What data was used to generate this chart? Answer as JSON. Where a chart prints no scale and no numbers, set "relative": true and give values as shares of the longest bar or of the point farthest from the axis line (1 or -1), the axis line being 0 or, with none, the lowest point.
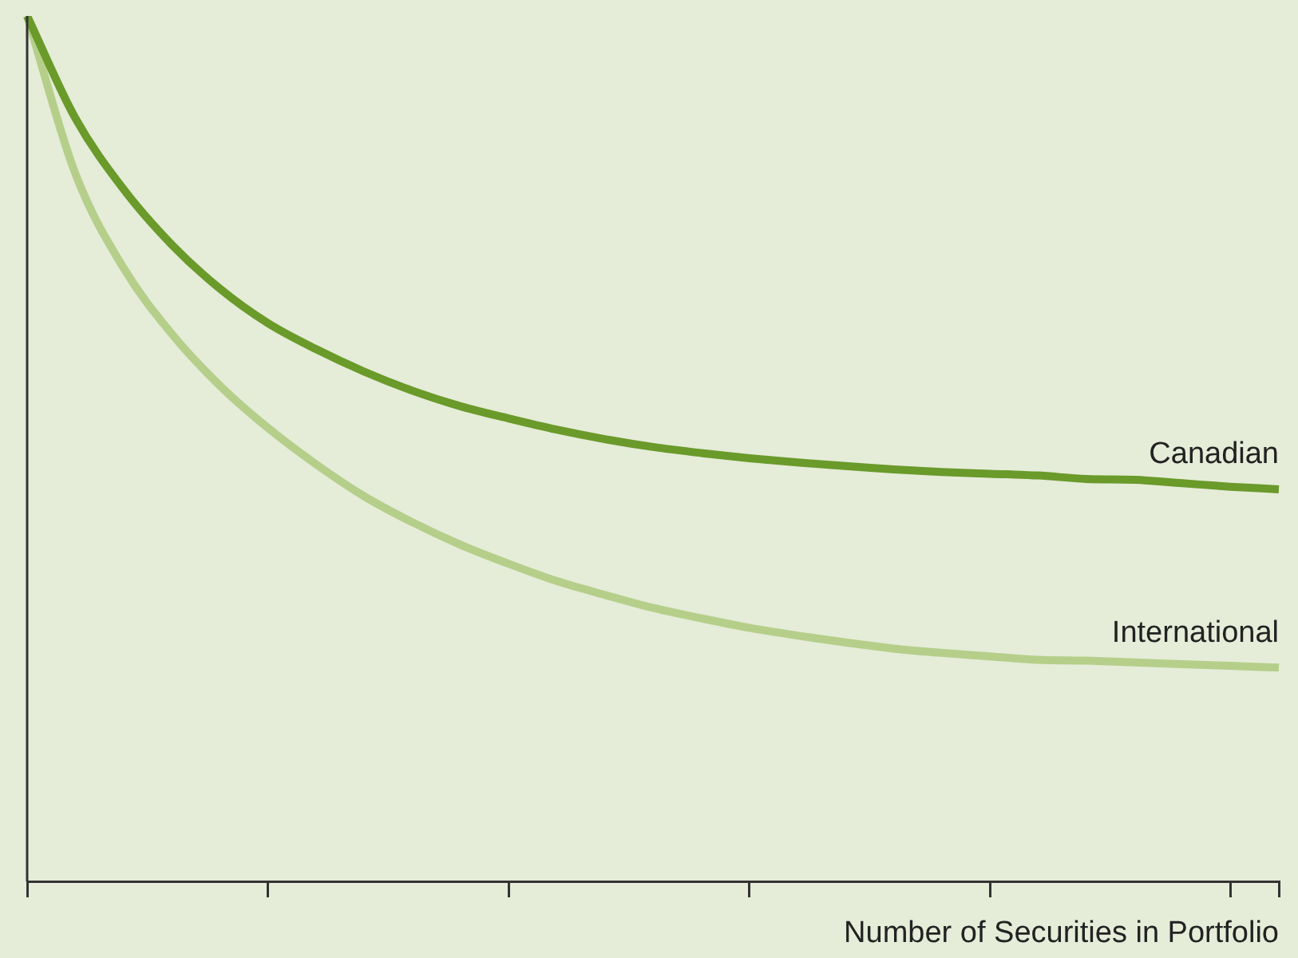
{
  "chart_data": {
    "type": "line",
    "relative": true,
    "xlabel": "Number of Securities in Portfolio",
    "legend": false,
    "grid": false,
    "marker": "none",
    "line_style": "solid",
    "categories": [
      null,
      null,
      null,
      null,
      null,
      null,
      null,
      null,
      null,
      null,
      null,
      null,
      null,
      null,
      null,
      null,
      null,
      null,
      null,
      null,
      null,
      null,
      null,
      null,
      null,
      null,
      null
    ],
    "series": [
      {
        "name": "Canadian",
        "color": "#6a9a2a",
        "values": [
          1,
          0.882,
          0.8,
          0.736,
          0.685,
          0.645,
          0.615,
          0.589,
          0.567,
          0.549,
          0.535,
          0.522,
          0.511,
          0.502,
          0.495,
          0.489,
          0.484,
          0.48,
          0.476,
          0.473,
          0.471,
          0.469,
          0.465,
          0.464,
          0.46,
          0.456,
          0.453
        ]
      },
      {
        "name": "International",
        "color": "#b5cf8a",
        "values": [
          1,
          0.818,
          0.709,
          0.633,
          0.573,
          0.524,
          0.482,
          0.445,
          0.415,
          0.389,
          0.367,
          0.347,
          0.331,
          0.316,
          0.304,
          0.293,
          0.284,
          0.276,
          0.269,
          0.264,
          0.26,
          0.256,
          0.255,
          0.253,
          0.251,
          0.249,
          0.247
        ]
      }
    ]
  }
}
